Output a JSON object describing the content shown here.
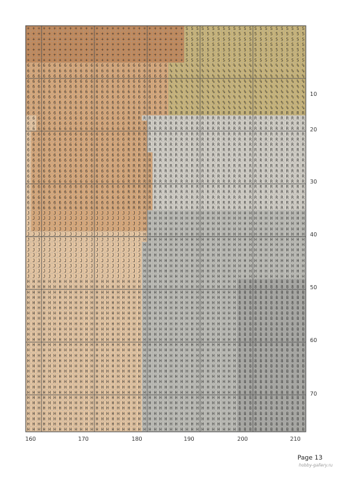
{
  "page": {
    "page_number": "Page 13",
    "watermark": "hobby-gallery.ru"
  },
  "axes": {
    "column_labels": [
      "160",
      "170",
      "180",
      "190",
      "200",
      "210"
    ],
    "row_labels": [
      "10",
      "20",
      "30",
      "40",
      "50",
      "60",
      "70"
    ]
  },
  "pattern_colors": {
    "peach": "#d8a87a",
    "brown": "#c0895c",
    "light_peach": "#e6c6a2",
    "olive": "#c9b57a",
    "gray_light": "#d3d0c8",
    "gray": "#bdbdb7",
    "gray_dark": "#a8a8a4"
  }
}
